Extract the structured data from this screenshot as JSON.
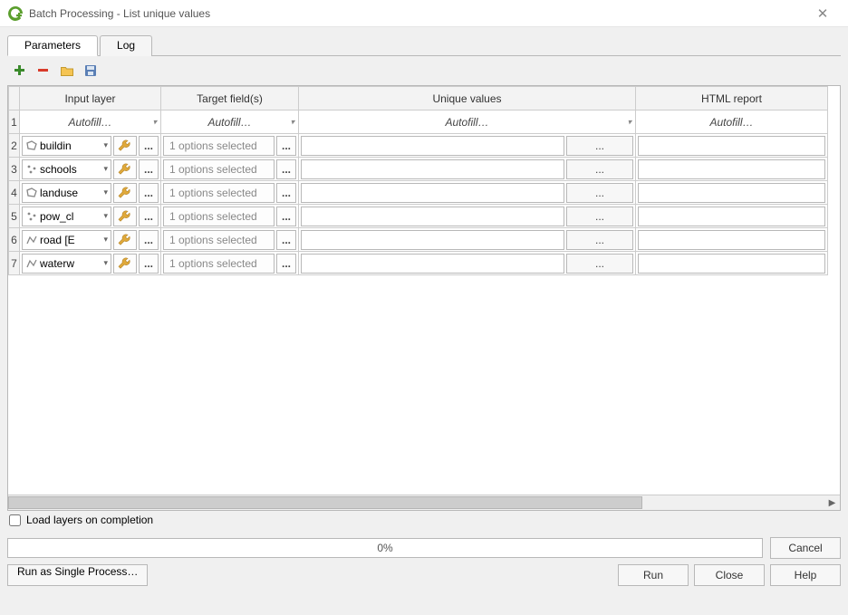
{
  "window": {
    "title": "Batch Processing - List unique values"
  },
  "tabs": {
    "parameters": "Parameters",
    "log": "Log"
  },
  "columns": {
    "input_layer": "Input layer",
    "target_fields": "Target field(s)",
    "unique_values": "Unique values",
    "html_report": "HTML report"
  },
  "autofill": "Autofill…",
  "ellipsis": "...",
  "rows": [
    {
      "num": "2",
      "layer": "buildin",
      "layer_type": "polygon",
      "options": "1 options selected"
    },
    {
      "num": "3",
      "layer": "schools",
      "layer_type": "point",
      "options": "1 options selected"
    },
    {
      "num": "4",
      "layer": "landuse",
      "layer_type": "polygon",
      "options": "1 options selected"
    },
    {
      "num": "5",
      "layer": "pow_cl",
      "layer_type": "point",
      "options": "1 options selected"
    },
    {
      "num": "6",
      "layer": "road [E",
      "layer_type": "line",
      "options": "1 options selected"
    },
    {
      "num": "7",
      "layer": "waterw",
      "layer_type": "line",
      "options": "1 options selected"
    }
  ],
  "row1_num": "1",
  "load_layers": "Load layers on completion",
  "progress_pct": "0%",
  "buttons": {
    "cancel": "Cancel",
    "run": "Run",
    "close": "Close",
    "help": "Help",
    "single": "Run as Single Process…"
  },
  "colors": {
    "qgis_green": "#5a9e2d",
    "add_green": "#3a8a2b",
    "remove_red": "#d83a2a",
    "folder": "#f5c453",
    "save_blue": "#5a7fb5",
    "wrench": "#e0a93a"
  }
}
